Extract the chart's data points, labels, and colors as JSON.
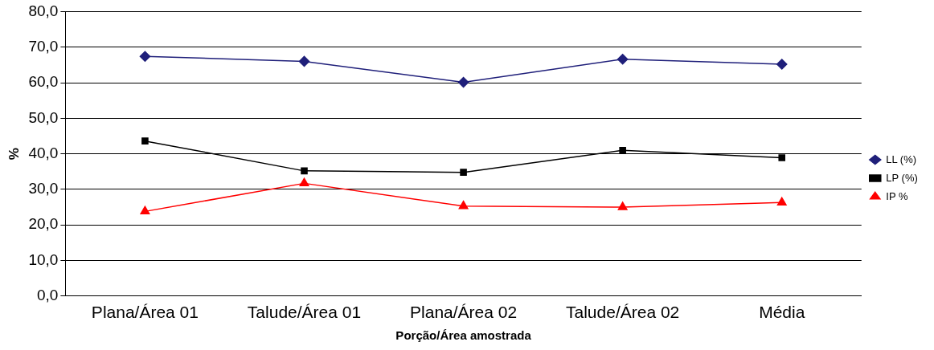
{
  "chart_data": {
    "type": "line",
    "xlabel": "Porção/Área amostrada",
    "ylabel": "%",
    "categories": [
      "Plana/Área 01",
      "Talude/Área 01",
      "Plana/Área 02",
      "Talude/Área 02",
      "Média"
    ],
    "series": [
      {
        "name": "LL (%)",
        "color": "#1f1f7a",
        "marker": "diamond",
        "values": [
          67.4,
          66.0,
          60.1,
          66.6,
          65.2
        ]
      },
      {
        "name": "LP (%)",
        "color": "#000000",
        "marker": "square",
        "values": [
          43.6,
          35.2,
          34.8,
          41.0,
          38.9
        ]
      },
      {
        "name": "IP %",
        "color": "#ff0000",
        "marker": "triangle",
        "values": [
          23.8,
          31.7,
          25.3,
          25.0,
          26.3
        ]
      }
    ],
    "ylim": [
      0,
      80
    ],
    "yticks": [
      {
        "value": 0,
        "label": "0,0"
      },
      {
        "value": 10,
        "label": "10,0"
      },
      {
        "value": 20,
        "label": "20,0"
      },
      {
        "value": 30,
        "label": "30,0"
      },
      {
        "value": 40,
        "label": "40,0"
      },
      {
        "value": 50,
        "label": "50,0"
      },
      {
        "value": 60,
        "label": "60,0"
      },
      {
        "value": 70,
        "label": "70,0"
      },
      {
        "value": 80,
        "label": "80,0"
      }
    ],
    "grid": "y",
    "legend": "right",
    "line_style": "solid"
  }
}
